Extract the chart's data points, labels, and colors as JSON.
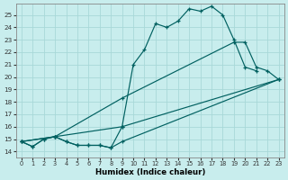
{
  "xlabel": "Humidex (Indice chaleur)",
  "bg_color": "#c8eded",
  "grid_color": "#a8d8d8",
  "line_color": "#006060",
  "xlim": [
    -0.5,
    23.5
  ],
  "ylim": [
    13.5,
    25.9
  ],
  "yticks": [
    14,
    15,
    16,
    17,
    18,
    19,
    20,
    21,
    22,
    23,
    24,
    25
  ],
  "xticks": [
    0,
    1,
    2,
    3,
    4,
    5,
    6,
    7,
    8,
    9,
    10,
    11,
    12,
    13,
    14,
    15,
    16,
    17,
    18,
    19,
    20,
    21,
    22,
    23
  ],
  "curve1_x": [
    0,
    1,
    2,
    3,
    4,
    5,
    6,
    7,
    8,
    9,
    10,
    11,
    12,
    13,
    14,
    15,
    16,
    17,
    18,
    19,
    20,
    21
  ],
  "curve1_y": [
    14.8,
    14.4,
    15.0,
    15.2,
    14.8,
    14.5,
    14.5,
    14.5,
    14.3,
    16.0,
    21.0,
    22.2,
    24.3,
    24.0,
    24.5,
    25.5,
    25.3,
    25.7,
    25.0,
    23.0,
    20.8,
    20.5
  ],
  "curve2_x": [
    0,
    3,
    9,
    23
  ],
  "curve2_y": [
    14.8,
    15.2,
    16.0,
    19.8
  ],
  "curve3_x": [
    0,
    3,
    9,
    19,
    20,
    21,
    22,
    23
  ],
  "curve3_y": [
    14.8,
    15.2,
    18.3,
    22.8,
    22.8,
    20.8,
    20.5,
    19.8
  ],
  "curve4_x": [
    0,
    1,
    2,
    3,
    4,
    5,
    6,
    7,
    8,
    9,
    23
  ],
  "curve4_y": [
    14.8,
    14.4,
    15.0,
    15.2,
    14.8,
    14.5,
    14.5,
    14.5,
    14.3,
    14.8,
    19.8
  ]
}
